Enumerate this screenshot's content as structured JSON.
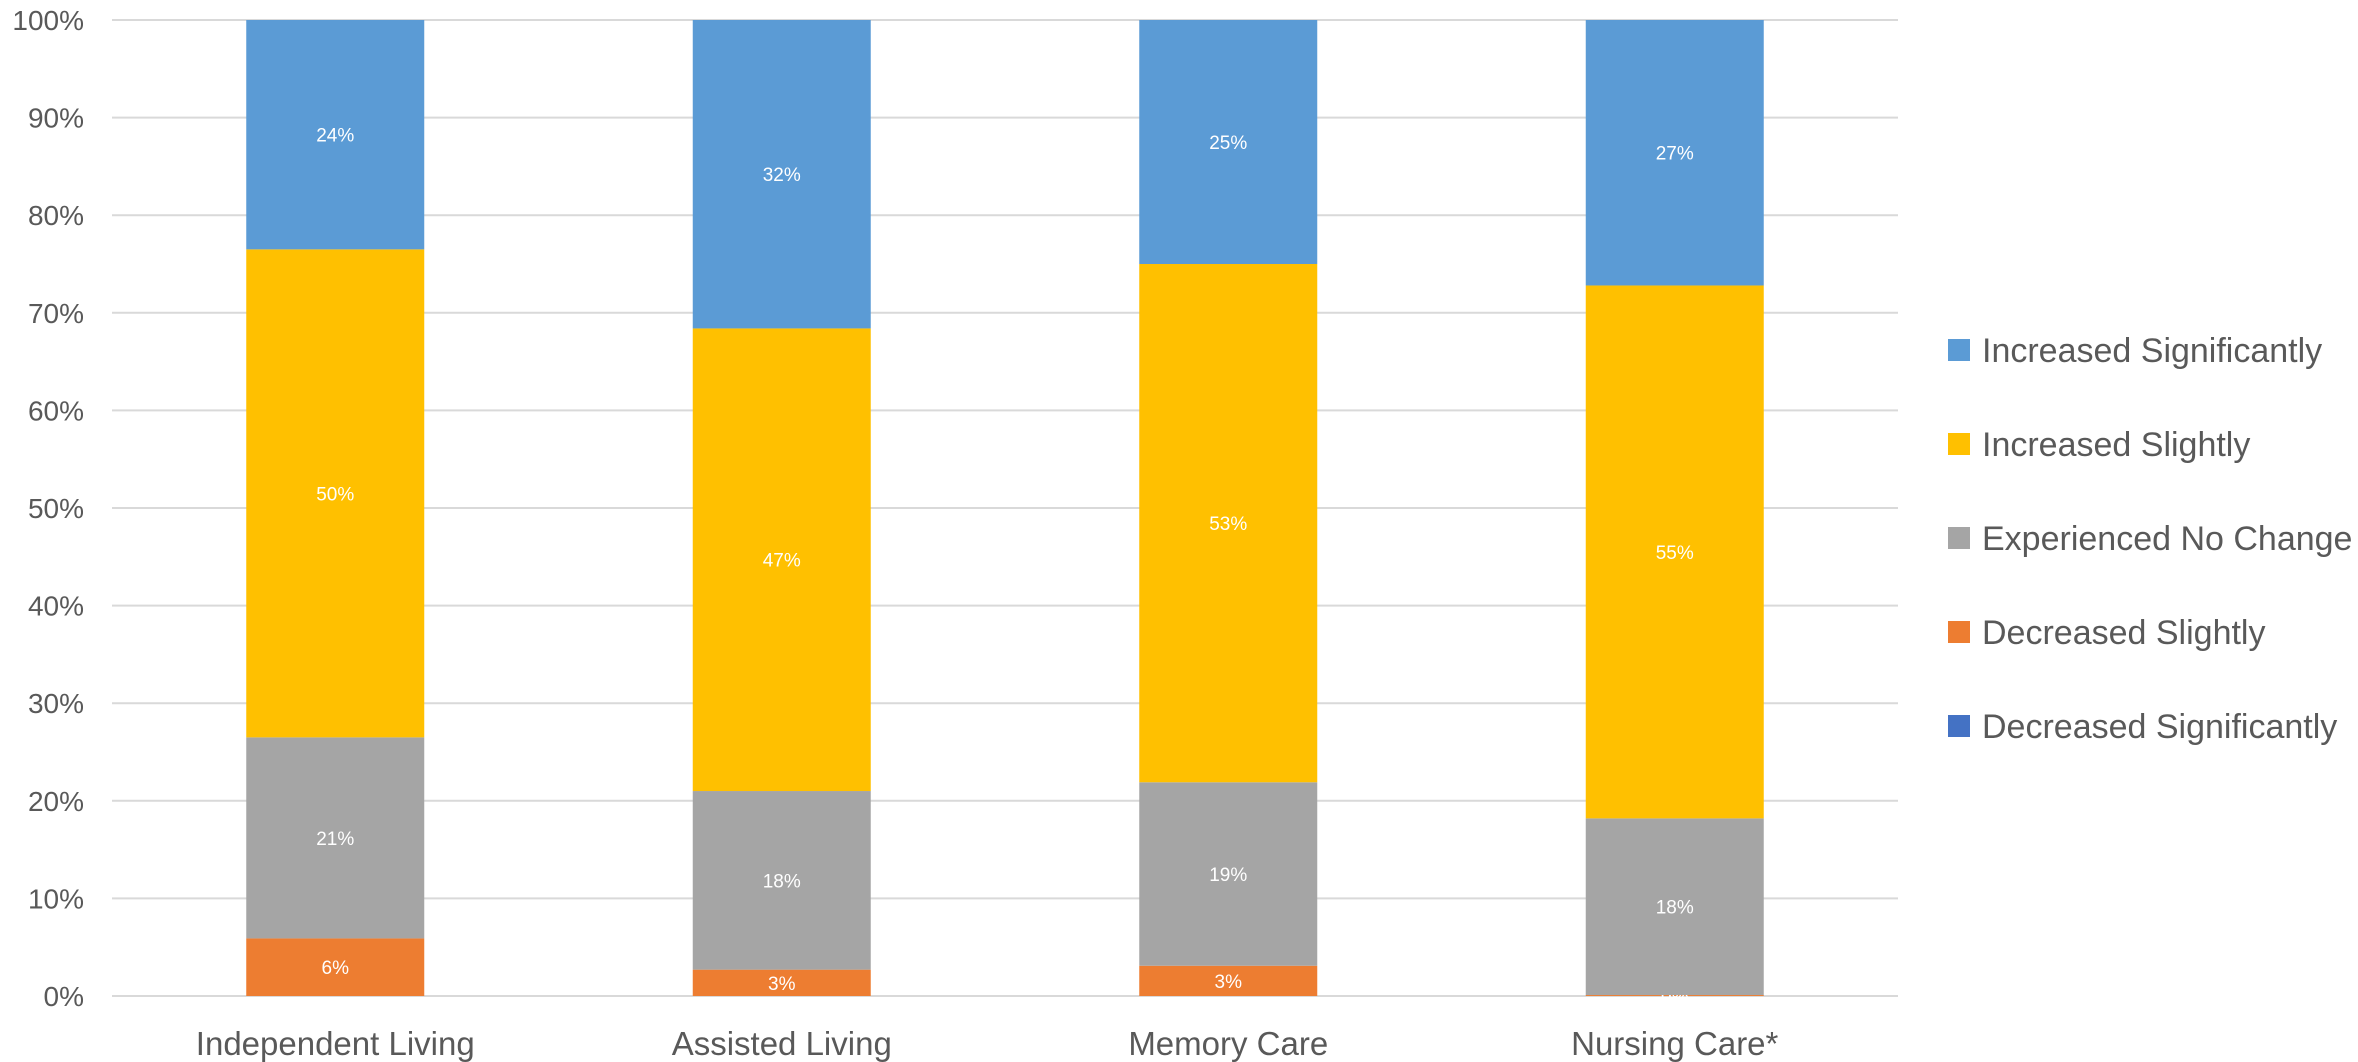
{
  "chart_data": {
    "type": "bar",
    "stacked": true,
    "percent": true,
    "categories": [
      "Independent Living",
      "Assisted Living",
      "Memory Care",
      "Nursing Care*"
    ],
    "series": [
      {
        "name": "Decreased Significantly",
        "color": "#4472C4",
        "values": [
          0,
          0,
          0,
          0
        ],
        "labels": [
          "",
          "",
          "",
          ""
        ]
      },
      {
        "name": "Decreased Slightly",
        "color": "#ED7D31",
        "values": [
          5.9,
          2.7,
          3.1,
          0.1
        ],
        "labels": [
          "6%",
          "3%",
          "3%",
          "0%"
        ]
      },
      {
        "name": "Experienced No Change",
        "color": "#A5A5A5",
        "values": [
          20.6,
          18.3,
          18.8,
          18.1
        ],
        "labels": [
          "21%",
          "18%",
          "19%",
          "18%"
        ]
      },
      {
        "name": "Increased Slightly",
        "color": "#FFC000",
        "values": [
          50.0,
          47.4,
          53.1,
          54.6
        ],
        "labels": [
          "50%",
          "47%",
          "53%",
          "55%"
        ]
      },
      {
        "name": "Increased Significantly",
        "color": "#5B9BD5",
        "values": [
          23.5,
          31.6,
          25.0,
          27.2
        ],
        "labels": [
          "24%",
          "32%",
          "25%",
          "27%"
        ]
      }
    ],
    "legend_order": [
      "Increased Significantly",
      "Increased Slightly",
      "Experienced No Change",
      "Decreased Slightly",
      "Decreased Significantly"
    ],
    "yticks": [
      "0%",
      "10%",
      "20%",
      "30%",
      "40%",
      "50%",
      "60%",
      "70%",
      "80%",
      "90%",
      "100%"
    ],
    "ylim": [
      0,
      100
    ],
    "grid": true,
    "legend_position": "right",
    "gridline_color": "#D9D9D9",
    "title": "",
    "xlabel": "",
    "ylabel": ""
  }
}
